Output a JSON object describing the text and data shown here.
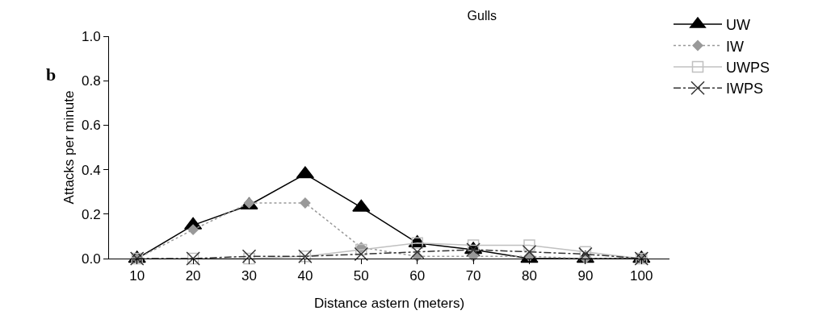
{
  "chart_data": {
    "type": "line",
    "title": "Gulls",
    "xlabel": "Distance astern (meters)",
    "ylabel": "Attacks per minute",
    "annotations": [
      "b"
    ],
    "categories": [
      "10",
      "20",
      "30",
      "40",
      "50",
      "60",
      "70",
      "80",
      "90",
      "100"
    ],
    "series": [
      {
        "name": "UW",
        "color": "#000000",
        "marker": "triangle",
        "line_style": "solid",
        "values": [
          0,
          0.15,
          0.24,
          0.38,
          0.23,
          0.07,
          0.04,
          0.0,
          0.0,
          0
        ]
      },
      {
        "name": "IW",
        "color": "#999999",
        "marker": "diamond",
        "line_style": "dotted",
        "values": [
          0,
          0.13,
          0.25,
          0.25,
          0.05,
          0.01,
          0.01,
          0.01,
          0.0,
          0
        ]
      },
      {
        "name": "UWPS",
        "color": "#c0c0c0",
        "marker": "square",
        "line_style": "solid",
        "values": [
          0,
          0,
          0,
          0.01,
          0.04,
          0.07,
          0.06,
          0.06,
          0.03,
          0
        ]
      },
      {
        "name": "IWPS",
        "color": "#333333",
        "marker": "cross",
        "line_style": "dashed",
        "values": [
          0,
          0,
          0.01,
          0.01,
          0.02,
          0.03,
          0.04,
          0.03,
          0.02,
          0
        ]
      }
    ],
    "ylim": [
      0,
      1.0
    ],
    "yticks": [
      {
        "value": 0,
        "label": "0.0"
      },
      {
        "value": 0.2,
        "label": "0.2"
      },
      {
        "value": 0.4,
        "label": "0.4"
      },
      {
        "value": 0.6,
        "label": "0.6"
      },
      {
        "value": 0.8,
        "label": "0.8"
      },
      {
        "value": 1.0,
        "label": "1.0"
      }
    ],
    "grid": false,
    "legend": "top right"
  }
}
